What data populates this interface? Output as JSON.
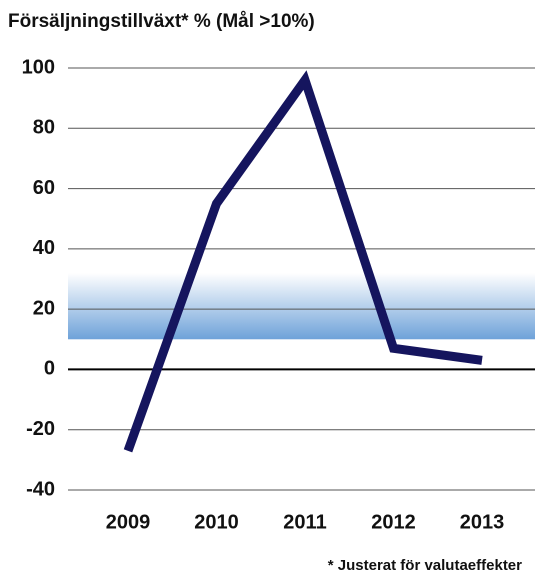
{
  "chart_data": {
    "type": "line",
    "title": "Försäljningstillväxt* % (Mål >10%)",
    "footnote": "* Justerat för valutaeffekter",
    "categories": [
      "2009",
      "2010",
      "2011",
      "2012",
      "2013"
    ],
    "series": [
      {
        "name": "Försäljningstillväxt",
        "color": "#15155e",
        "values": [
          -27,
          55,
          96,
          7,
          3
        ]
      }
    ],
    "band": {
      "from": 10,
      "to": 32,
      "color": "#6ea2d9"
    },
    "ylim": [
      -40,
      100
    ],
    "yticks": [
      -40,
      -20,
      0,
      20,
      40,
      60,
      80,
      100
    ],
    "grid": true
  }
}
